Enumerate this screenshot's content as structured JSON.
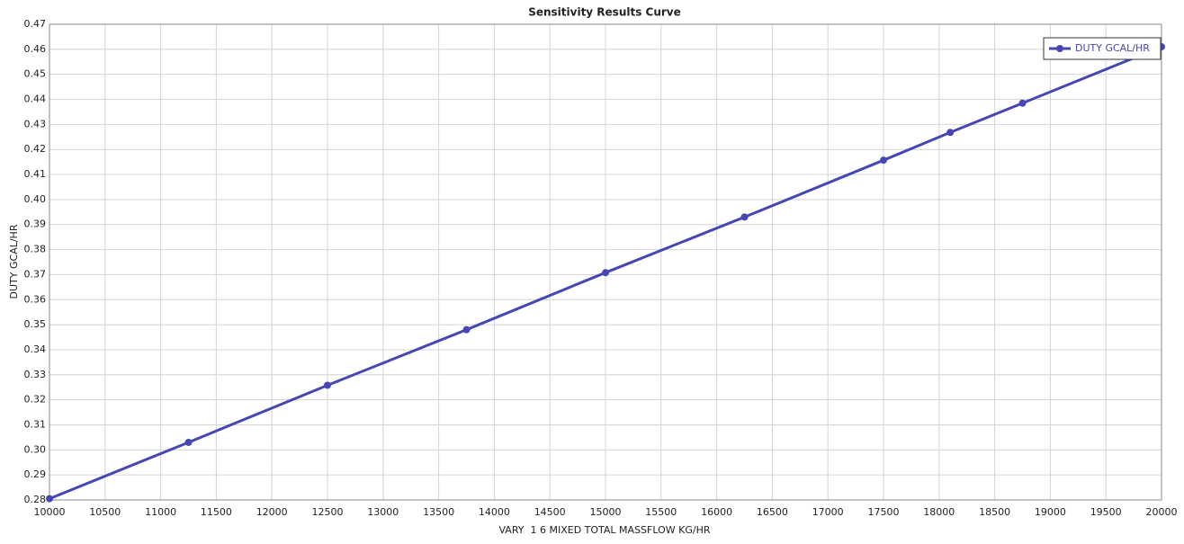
{
  "chart_data": {
    "type": "line",
    "title": "Sensitivity Results Curve",
    "x_label": "VARY  1 6 MIXED TOTAL MASSFLOW KG/HR",
    "y_label": "DUTY GCAL/HR",
    "x": [
      10000,
      11250,
      12500,
      13750,
      15000,
      16250,
      17500,
      18100,
      18750,
      20000
    ],
    "series": [
      {
        "name": "DUTY GCAL/HR",
        "color": "#4646b4",
        "values": [
          0.2805,
          0.303,
          0.3258,
          0.348,
          0.3708,
          0.393,
          0.4157,
          0.4268,
          0.4385,
          0.461
        ]
      }
    ],
    "xlim": [
      10000,
      20000
    ],
    "xticks": [
      10000,
      10500,
      11000,
      11500,
      12000,
      12500,
      13000,
      13500,
      14000,
      14500,
      15000,
      15500,
      16000,
      16500,
      17000,
      17500,
      18000,
      18500,
      19000,
      19500,
      20000
    ],
    "ylim": [
      0.28,
      0.47
    ],
    "yticks": [
      0.28,
      0.29,
      {
        "value": 0.3,
        "label": "0.30"
      },
      0.31,
      0.32,
      0.33,
      0.34,
      0.35,
      0.36,
      0.37,
      0.38,
      0.39,
      {
        "value": 0.4,
        "label": "0.40"
      },
      0.41,
      0.42,
      0.43,
      0.44,
      0.45,
      0.46,
      0.47
    ],
    "grid": true,
    "legend": "top-right"
  }
}
